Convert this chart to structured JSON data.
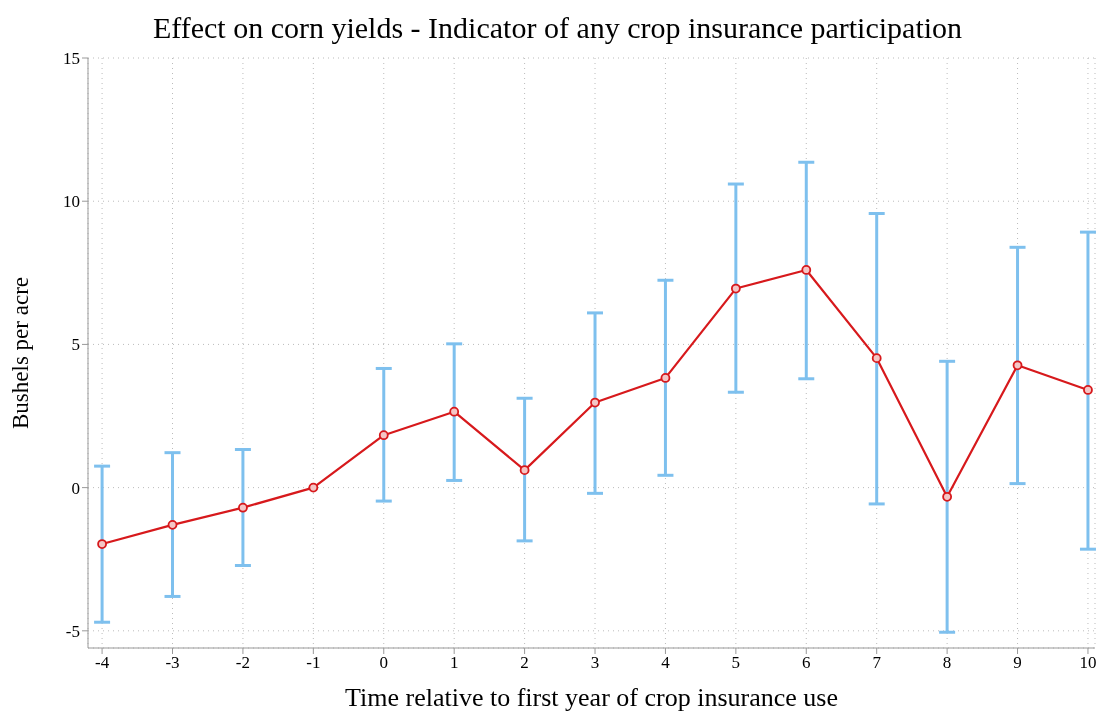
{
  "chart_data": {
    "type": "line",
    "title": "Effect on corn yields - Indicator of any crop insurance participation",
    "xlabel": "Time relative to first year of crop insurance use",
    "ylabel": "Bushels per acre",
    "x": [
      -4,
      -3,
      -2,
      -1,
      0,
      1,
      2,
      3,
      4,
      5,
      6,
      7,
      8,
      9,
      10
    ],
    "series": [
      {
        "color": "#d7191c",
        "values": [
          -1.97,
          -1.3,
          -0.7,
          0,
          1.83,
          2.65,
          0.61,
          2.97,
          3.83,
          6.95,
          7.6,
          4.52,
          -0.32,
          4.27,
          3.41
        ],
        "errors": [
          [
            -4.7,
            0.75
          ],
          [
            -3.8,
            1.22
          ],
          [
            -2.72,
            1.33
          ],
          null,
          [
            -0.47,
            4.16
          ],
          [
            0.25,
            5.02
          ],
          [
            -1.86,
            3.12
          ],
          [
            -0.2,
            6.1
          ],
          [
            0.43,
            7.24
          ],
          [
            3.33,
            10.6
          ],
          [
            3.8,
            11.36
          ],
          [
            -0.57,
            9.57
          ],
          [
            -5.05,
            4.41
          ],
          [
            0.14,
            8.39
          ],
          [
            -2.15,
            8.92
          ]
        ]
      }
    ],
    "xlim": [
      -4.2,
      10.1
    ],
    "xticks": [
      -4,
      -3,
      -2,
      -1,
      0,
      1,
      2,
      3,
      4,
      5,
      6,
      7,
      8,
      9,
      10
    ],
    "ylim": [
      -5.6,
      15
    ],
    "yticks": [
      -5,
      0,
      5,
      10,
      15
    ],
    "grid": true,
    "marker": "circle",
    "line_style": "solid",
    "legend": false
  }
}
